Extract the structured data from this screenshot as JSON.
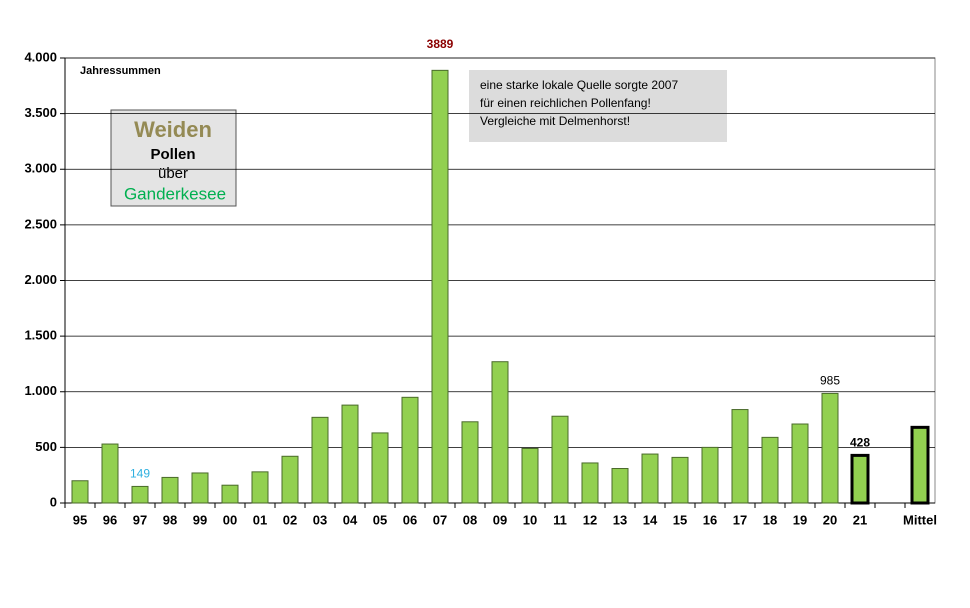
{
  "chart_data": {
    "type": "bar",
    "annotation": "Jahressummen",
    "legend_box": [
      "Weiden",
      "Pollen",
      "über",
      "Ganderkesee"
    ],
    "note": [
      "eine starke lokale Quelle sorgte  2007",
      "für einen reichlichen Pollenfang!",
      "Vergleiche mit Delmenhorst!"
    ],
    "categories": [
      "95",
      "96",
      "97",
      "98",
      "99",
      "00",
      "01",
      "02",
      "03",
      "04",
      "05",
      "06",
      "07",
      "08",
      "09",
      "10",
      "11",
      "12",
      "13",
      "14",
      "15",
      "16",
      "17",
      "18",
      "19",
      "20",
      "21",
      null,
      "Mittel"
    ],
    "values": [
      200,
      530,
      149,
      230,
      270,
      160,
      280,
      420,
      770,
      880,
      630,
      950,
      3889,
      730,
      1270,
      490,
      780,
      360,
      310,
      440,
      410,
      500,
      840,
      590,
      710,
      985,
      428,
      null,
      680
    ],
    "value_labels": [
      null,
      null,
      "149",
      null,
      null,
      null,
      null,
      null,
      null,
      null,
      null,
      null,
      "3889",
      null,
      null,
      null,
      null,
      null,
      null,
      null,
      null,
      null,
      null,
      null,
      null,
      "985",
      "428",
      null,
      null
    ],
    "value_label_colors": [
      null,
      null,
      "#2eb0e0",
      null,
      null,
      null,
      null,
      null,
      null,
      null,
      null,
      null,
      "#8b0000",
      null,
      null,
      null,
      null,
      null,
      null,
      null,
      null,
      null,
      null,
      null,
      null,
      "#000000",
      "#000000",
      null,
      null
    ],
    "color": "#92d050",
    "outlined_indices": [
      26,
      28
    ],
    "ylim": [
      0,
      4000
    ],
    "yticks": [
      0,
      500,
      {
        "value": 1000,
        "label": "1.000"
      },
      {
        "value": 1500,
        "label": "1.500"
      },
      {
        "value": 2000,
        "label": "2.000"
      },
      {
        "value": 2500,
        "label": "2.500"
      },
      {
        "value": 3000,
        "label": "3.000"
      },
      {
        "value": 3500,
        "label": "3.500"
      },
      {
        "value": 4000,
        "label": "4.000"
      }
    ],
    "grid": true
  }
}
